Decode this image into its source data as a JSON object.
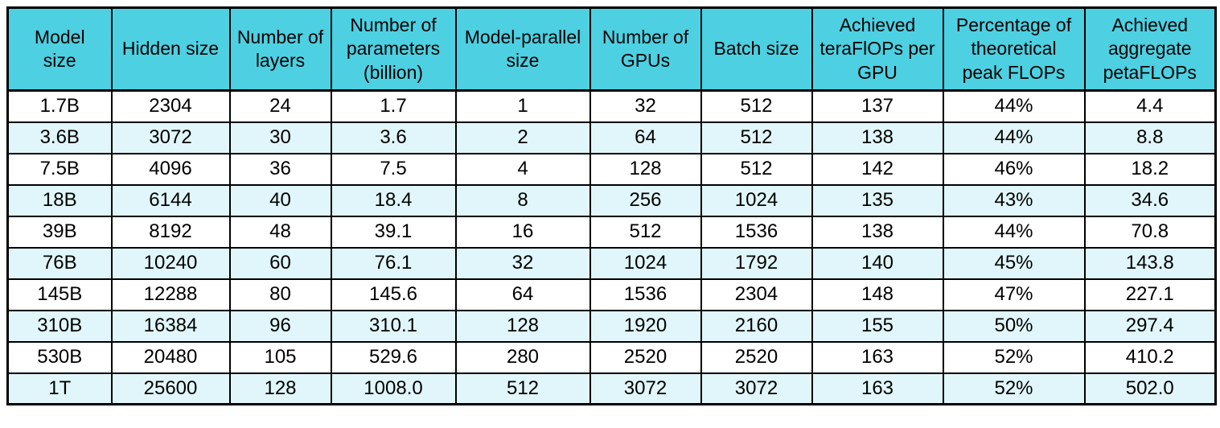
{
  "colors": {
    "header_bg": "#4dd0e1",
    "row_bg": "#ffffff",
    "row_alt_bg": "#e0f6fa",
    "border": "#000000",
    "text": "#000000",
    "page_bg": "#ffffff"
  },
  "chart_data": {
    "type": "table",
    "columns": [
      "Model size",
      "Hidden size",
      "Number of layers",
      "Number of parameters (billion)",
      "Model-parallel size",
      "Number of GPUs",
      "Batch size",
      "Achieved teraFlOPs per GPU",
      "Percentage of theoretical peak FLOPs",
      "Achieved aggregate petaFLOPs"
    ],
    "rows": [
      [
        "1.7B",
        "2304",
        "24",
        "1.7",
        "1",
        "32",
        "512",
        "137",
        "44%",
        "4.4"
      ],
      [
        "3.6B",
        "3072",
        "30",
        "3.6",
        "2",
        "64",
        "512",
        "138",
        "44%",
        "8.8"
      ],
      [
        "7.5B",
        "4096",
        "36",
        "7.5",
        "4",
        "128",
        "512",
        "142",
        "46%",
        "18.2"
      ],
      [
        "18B",
        "6144",
        "40",
        "18.4",
        "8",
        "256",
        "1024",
        "135",
        "43%",
        "34.6"
      ],
      [
        "39B",
        "8192",
        "48",
        "39.1",
        "16",
        "512",
        "1536",
        "138",
        "44%",
        "70.8"
      ],
      [
        "76B",
        "10240",
        "60",
        "76.1",
        "32",
        "1024",
        "1792",
        "140",
        "45%",
        "143.8"
      ],
      [
        "145B",
        "12288",
        "80",
        "145.6",
        "64",
        "1536",
        "2304",
        "148",
        "47%",
        "227.1"
      ],
      [
        "310B",
        "16384",
        "96",
        "310.1",
        "128",
        "1920",
        "2160",
        "155",
        "50%",
        "297.4"
      ],
      [
        "530B",
        "20480",
        "105",
        "529.6",
        "280",
        "2520",
        "2520",
        "163",
        "52%",
        "410.2"
      ],
      [
        "1T",
        "25600",
        "128",
        "1008.0",
        "512",
        "3072",
        "3072",
        "163",
        "52%",
        "502.0"
      ]
    ]
  }
}
